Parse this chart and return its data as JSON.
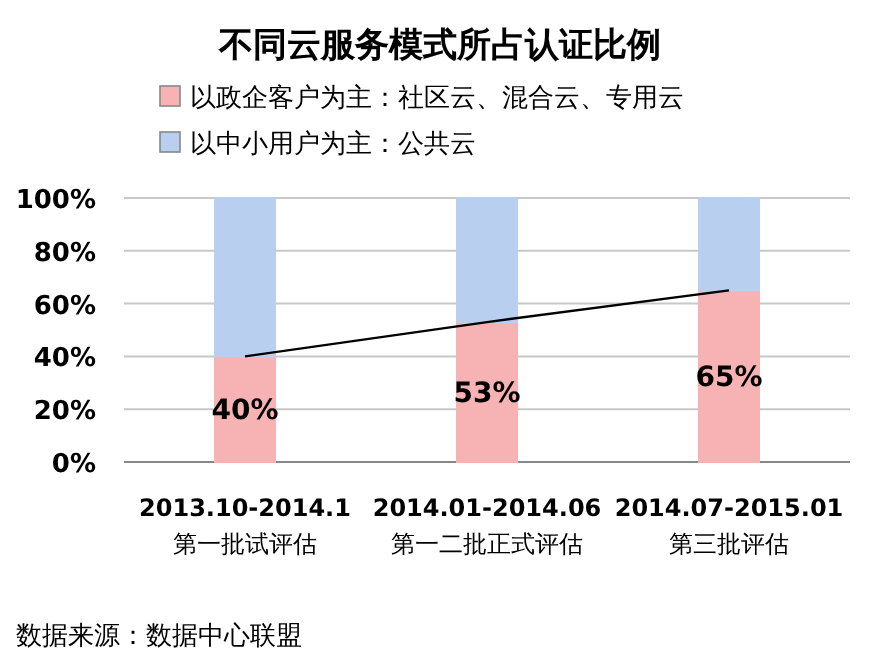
{
  "chart_data": {
    "type": "bar",
    "stacked": true,
    "title": "不同云服务模式所占认证比例",
    "categories": [
      "2013.10-2014.1\n第一批试评估",
      "2014.01-2014.06\n第一二批正式评估",
      "2014.07-2015.01\n第三批评估"
    ],
    "series": [
      {
        "name": "以政企客户为主：社区云、混合云、专用云",
        "color": "#f7b3b3",
        "values": [
          40,
          53,
          65
        ],
        "value_labels": [
          "40%",
          "53%",
          "65%"
        ]
      },
      {
        "name": "以中小用户为主：公共云",
        "color": "#b9cff0",
        "values": [
          60,
          47,
          35
        ]
      },
      {
        "type": "line",
        "color": "#000000",
        "values": [
          40,
          53,
          65
        ]
      }
    ],
    "ylim": [
      0,
      100
    ],
    "yticks": [
      {
        "value": 0,
        "label": "0%"
      },
      {
        "value": 20,
        "label": "20%"
      },
      {
        "value": 40,
        "label": "40%"
      },
      {
        "value": 60,
        "label": "60%"
      },
      {
        "value": 80,
        "label": "80%"
      },
      {
        "value": 100,
        "label": "100%"
      }
    ],
    "grid": "y",
    "legend": "top",
    "annotations": [
      "数据来源：数据中心联盟"
    ]
  }
}
